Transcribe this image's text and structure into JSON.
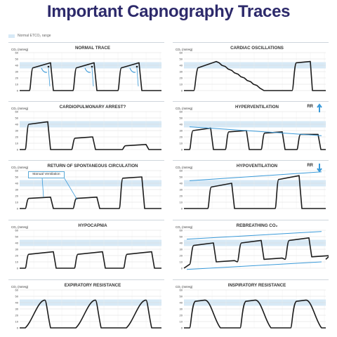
{
  "title": "Important Capnography Traces",
  "legend": {
    "label": "Normal ETCO₂ range"
  },
  "axis": {
    "ylabel": "CO₂ (mmHg)",
    "ticks": [
      "60",
      "50",
      "40",
      "30",
      "20",
      "10",
      "0"
    ]
  },
  "colors": {
    "trace": "#1c1c1c",
    "accent": "#3a9ad9",
    "band": "#d7e9f6",
    "grid": "#d9d9d9",
    "title": "#2d2a6b"
  },
  "panels": [
    {
      "id": "normal",
      "title": "NORMAL TRACE"
    },
    {
      "id": "cardiac",
      "title": "CARDIAC OSCILLATIONS"
    },
    {
      "id": "arrest",
      "title": "CARDIOPULMONARY ARREST?"
    },
    {
      "id": "hyper",
      "title": "HYPERVENTILATION",
      "rr": "RR",
      "rr_arrow": "up"
    },
    {
      "id": "rosc",
      "title": "RETURN OF SPONTANEOUS CIRCULATION",
      "callout": "Manual Ventilation"
    },
    {
      "id": "hypo",
      "title": "HYPOVENTILATION",
      "rr": "RR",
      "rr_arrow": "down"
    },
    {
      "id": "hypocapnia",
      "title": "HYPOCAPNIA"
    },
    {
      "id": "rebreathing",
      "title": "REBREATHING CO₂"
    },
    {
      "id": "expiratory",
      "title": "EXPIRATORY RESISTANCE"
    },
    {
      "id": "inspiratory",
      "title": "INSPIRATORY RESISTANCE"
    }
  ]
}
